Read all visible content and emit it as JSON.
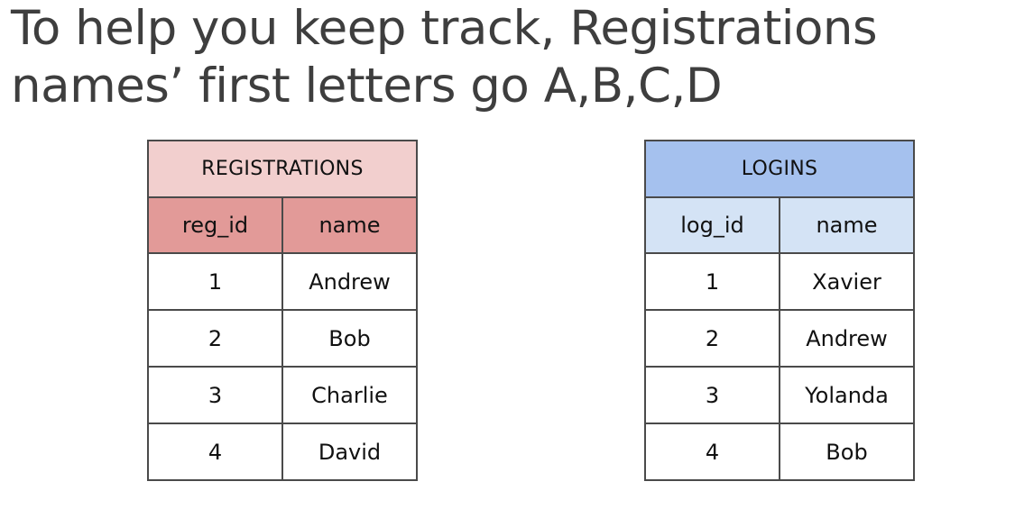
{
  "title": {
    "line1": "To help you keep track, Registrations",
    "line2": "names’ first letters go A,B,C,D"
  },
  "tables": [
    {
      "caption": "REGISTRATIONS",
      "columns": [
        "reg_id",
        "name"
      ],
      "rows": [
        [
          "1",
          "Andrew"
        ],
        [
          "2",
          "Bob"
        ],
        [
          "3",
          "Charlie"
        ],
        [
          "4",
          "David"
        ]
      ],
      "colors": {
        "caption_bg": "#f2cfce",
        "header_bg": "#e29a98"
      }
    },
    {
      "caption": "LOGINS",
      "columns": [
        "log_id",
        "name"
      ],
      "rows": [
        [
          "1",
          "Xavier"
        ],
        [
          "2",
          "Andrew"
        ],
        [
          "3",
          "Yolanda"
        ],
        [
          "4",
          "Bob"
        ]
      ],
      "colors": {
        "caption_bg": "#a5c1ee",
        "header_bg": "#d4e3f5"
      }
    }
  ]
}
